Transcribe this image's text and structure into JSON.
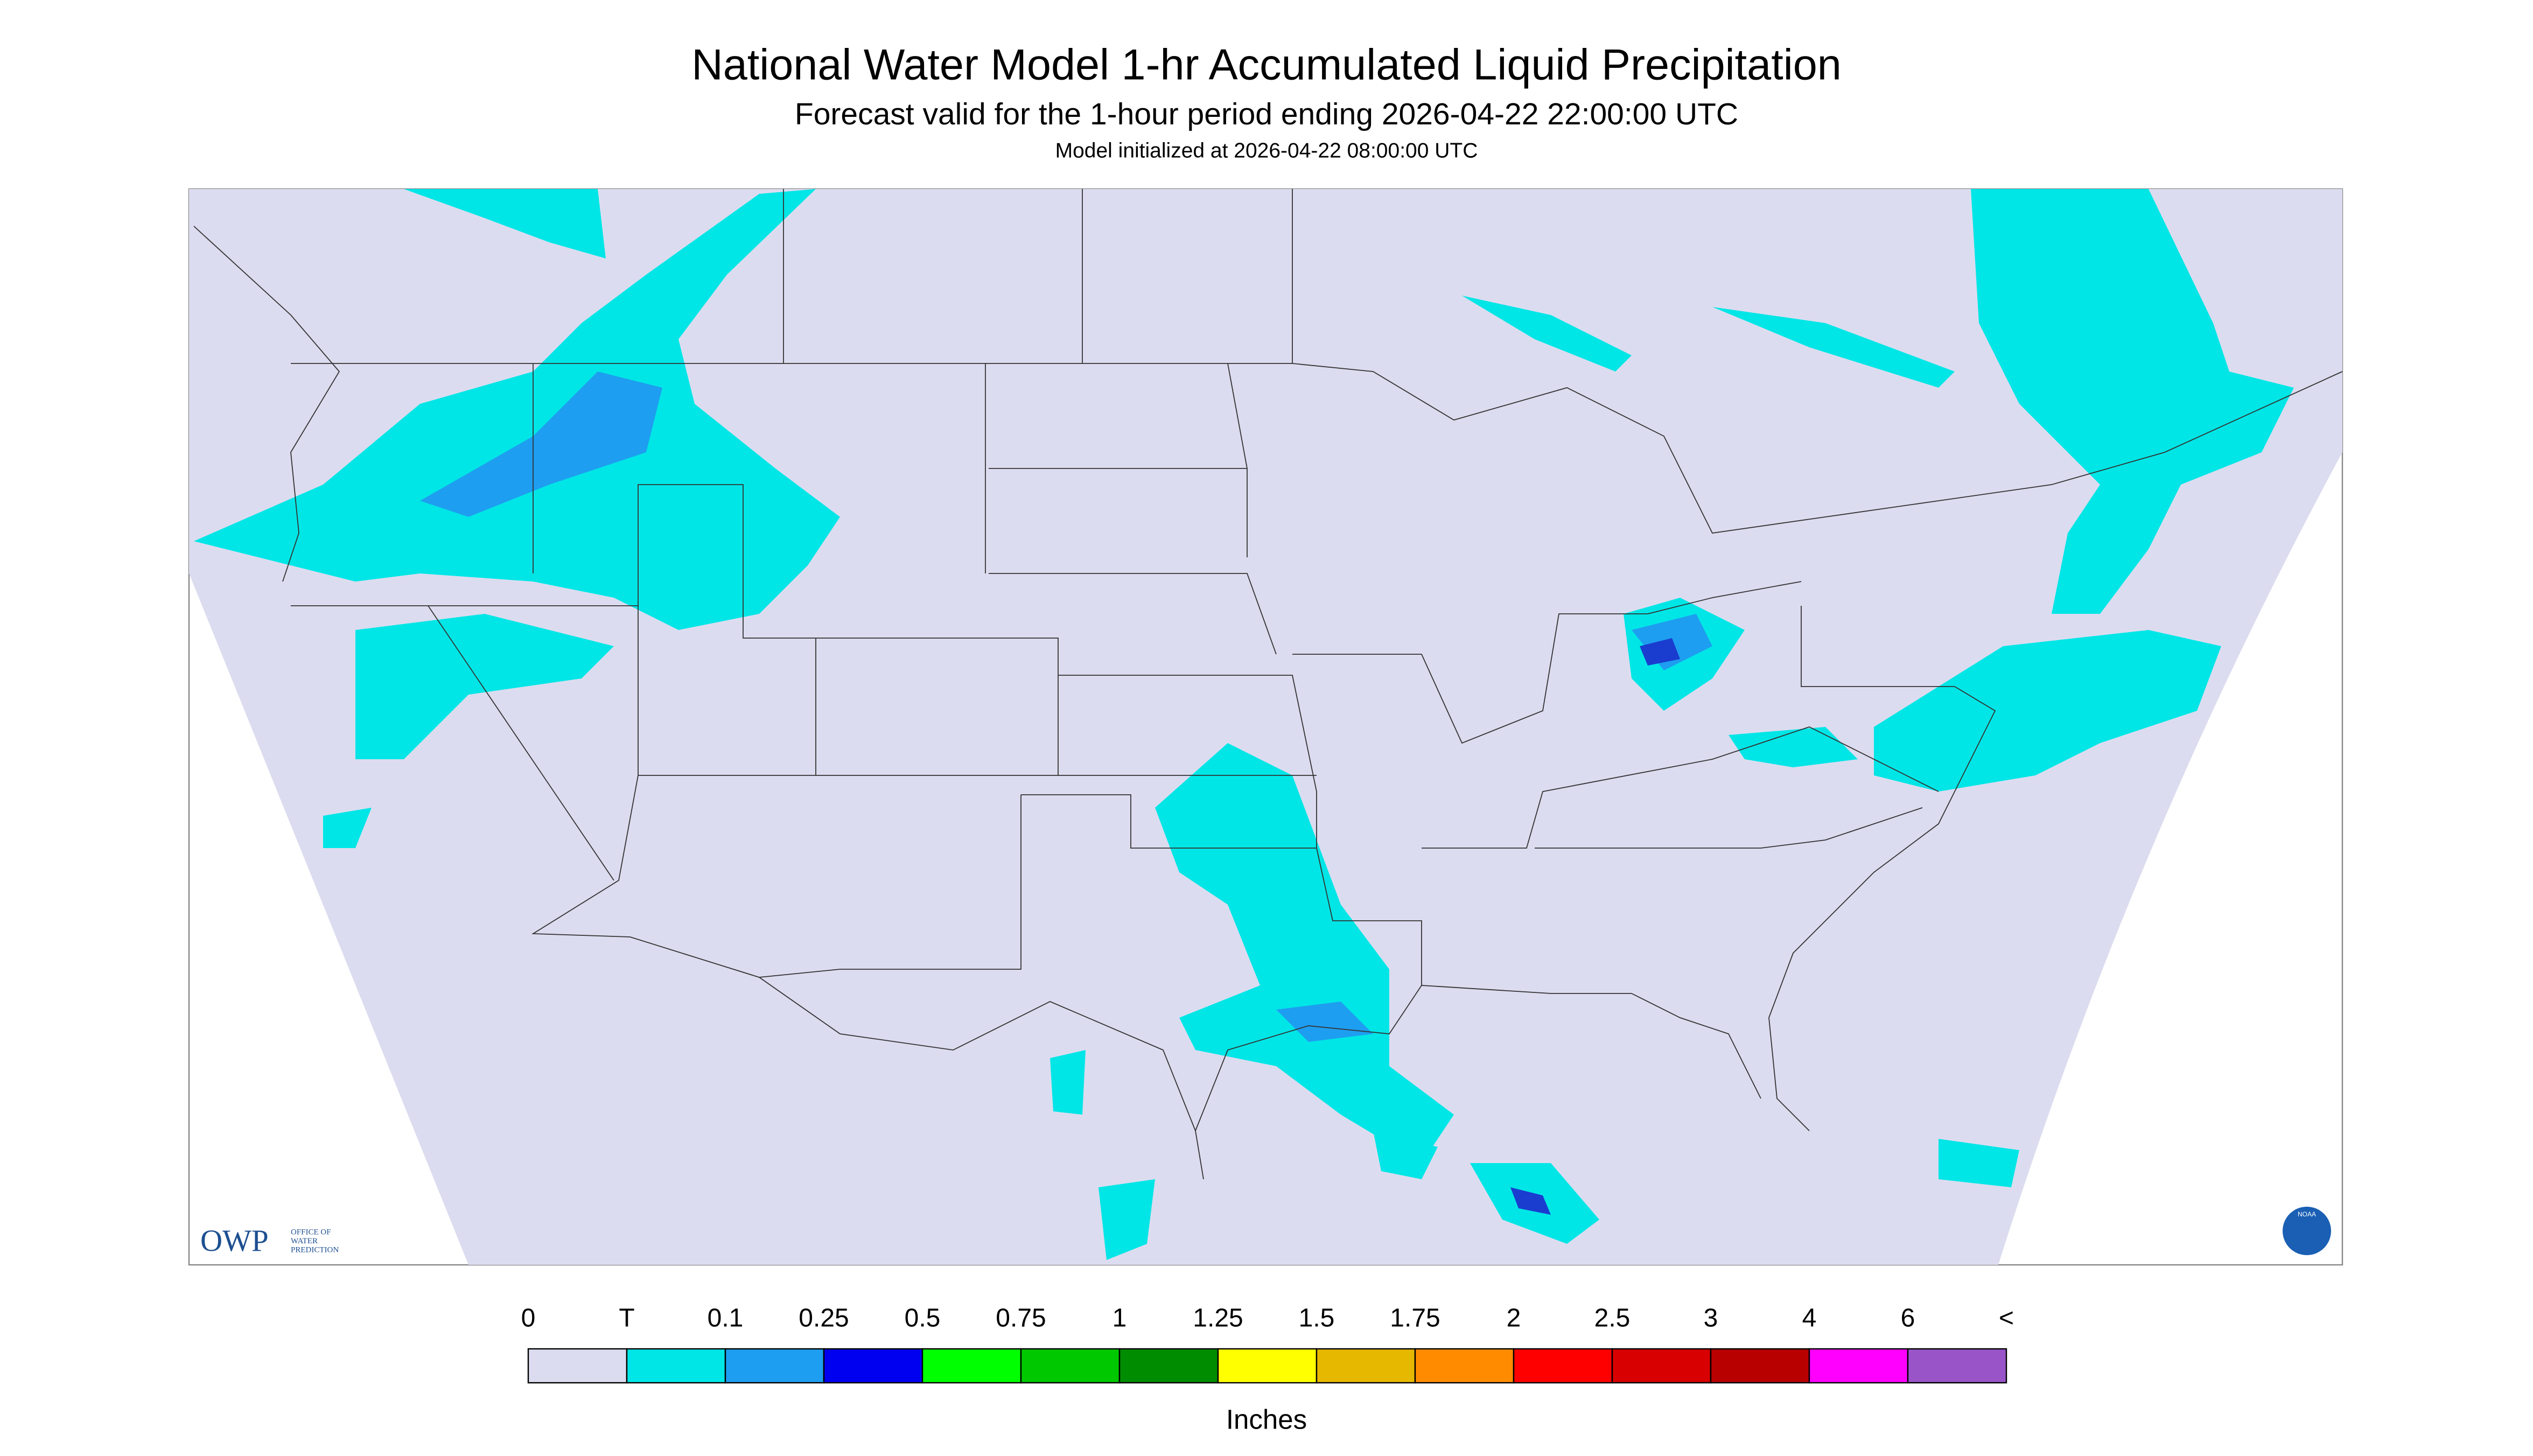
{
  "header": {
    "title": "National Water Model 1-hr Accumulated Liquid Precipitation",
    "subtitle": "Forecast valid for the 1-hour period ending 2026-04-22 22:00:00 UTC",
    "initialized": "Model initialized at 2026-04-22 08:00:00 UTC"
  },
  "legend": {
    "labels": [
      "0",
      "T",
      "0.1",
      "0.25",
      "0.5",
      "0.75",
      "1",
      "1.25",
      "1.5",
      "1.75",
      "2",
      "2.5",
      "3",
      "4",
      "6",
      "<"
    ],
    "colors": [
      "#dcdcf0",
      "#00e6e6",
      "#1e9ef0",
      "#0000f0",
      "#00ff00",
      "#00c800",
      "#008c00",
      "#ffff00",
      "#e6b800",
      "#ff8c00",
      "#ff0000",
      "#d80000",
      "#b80000",
      "#ff00ff",
      "#9955c8"
    ],
    "unit": "Inches"
  },
  "logos": {
    "owp": "OWP",
    "owp_lines": [
      "OFFICE OF",
      "WATER",
      "PREDICTION"
    ],
    "noaa": "NOAA"
  }
}
